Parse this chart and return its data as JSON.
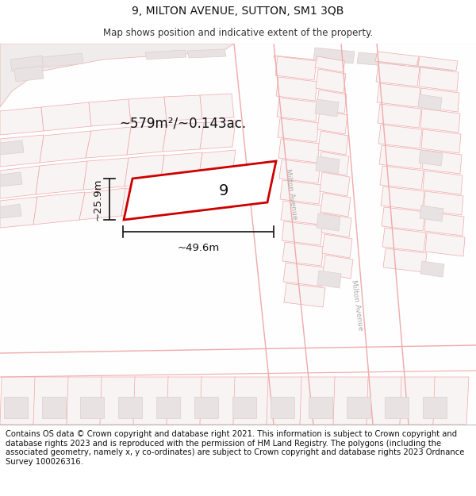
{
  "title": "9, MILTON AVENUE, SUTTON, SM1 3QB",
  "subtitle": "Map shows position and indicative extent of the property.",
  "footer": "Contains OS data © Crown copyright and database right 2021. This information is subject to Crown copyright and database rights 2023 and is reproduced with the permission of HM Land Registry. The polygons (including the associated geometry, namely x, y co-ordinates) are subject to Crown copyright and database rights 2023 Ordnance Survey 100026316.",
  "area_label": "~579m²/~0.143ac.",
  "width_label": "~49.6m",
  "height_label": "~25.9m",
  "property_number": "9",
  "bg_color": "#ffffff",
  "property_fill": "#ffffff",
  "property_edge": "#cc0000",
  "road_line_color": "#f0aaaa",
  "block_fill": "#e8e2e2",
  "block_edge": "#ddd0d0",
  "title_fontsize": 10,
  "subtitle_fontsize": 8.5,
  "footer_fontsize": 7.2,
  "map_text_color": "#aaaaaa",
  "dim_color": "#111111"
}
